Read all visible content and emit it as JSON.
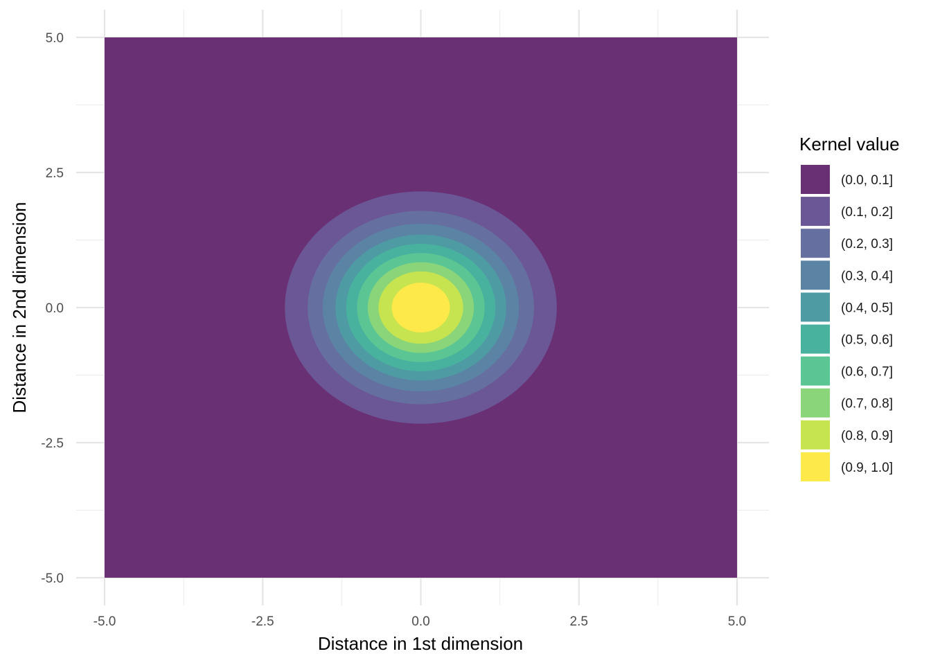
{
  "chart_data": {
    "type": "heatmap",
    "subtype": "filled-contour",
    "title": "",
    "xlabel": "Distance in 1st dimension",
    "ylabel": "Distance in 2nd dimension",
    "xlim": [
      -5.0,
      5.0
    ],
    "ylim": [
      -5.0,
      5.0
    ],
    "x_ticks": [
      "-5.0",
      "-2.5",
      "0.0",
      "2.5",
      "5.0"
    ],
    "y_ticks": [
      "5.0",
      "2.5",
      "0.0",
      "-2.5",
      "-5.0"
    ],
    "grid": true,
    "legend_position": "right",
    "legend_title": "Kernel value",
    "kernel": "gaussian",
    "levels": [
      {
        "label": "(0.0, 0.1]",
        "lower": 0.0,
        "upper": 0.1,
        "color": "#6a3074"
      },
      {
        "label": "(0.1, 0.2]",
        "lower": 0.1,
        "upper": 0.2,
        "color": "#6b5696"
      },
      {
        "label": "(0.2, 0.3]",
        "lower": 0.2,
        "upper": 0.3,
        "color": "#6570a0"
      },
      {
        "label": "(0.3, 0.4]",
        "lower": 0.3,
        "upper": 0.4,
        "color": "#5b84a4"
      },
      {
        "label": "(0.4, 0.5]",
        "lower": 0.4,
        "upper": 0.5,
        "color": "#4f9ba4"
      },
      {
        "label": "(0.5, 0.6]",
        "lower": 0.5,
        "upper": 0.6,
        "color": "#48b29f"
      },
      {
        "label": "(0.6, 0.7]",
        "lower": 0.6,
        "upper": 0.7,
        "color": "#5cc594"
      },
      {
        "label": "(0.7, 0.8]",
        "lower": 0.7,
        "upper": 0.8,
        "color": "#8ad57a"
      },
      {
        "label": "(0.8, 0.9]",
        "lower": 0.8,
        "upper": 0.9,
        "color": "#c6e350"
      },
      {
        "label": "(0.9, 1.0]",
        "lower": 0.9,
        "upper": 1.0,
        "color": "#fde94a"
      }
    ],
    "contours": [
      {
        "level": 0.1,
        "rx": 2.15,
        "ry": 2.15
      },
      {
        "level": 0.2,
        "rx": 1.79,
        "ry": 1.79
      },
      {
        "level": 0.3,
        "rx": 1.55,
        "ry": 1.55
      },
      {
        "level": 0.4,
        "rx": 1.35,
        "ry": 1.35
      },
      {
        "level": 0.5,
        "rx": 1.18,
        "ry": 1.18
      },
      {
        "level": 0.6,
        "rx": 1.01,
        "ry": 1.01
      },
      {
        "level": 0.7,
        "rx": 0.84,
        "ry": 0.84
      },
      {
        "level": 0.8,
        "rx": 0.67,
        "ry": 0.67
      },
      {
        "level": 0.9,
        "rx": 0.46,
        "ry": 0.46
      }
    ]
  }
}
